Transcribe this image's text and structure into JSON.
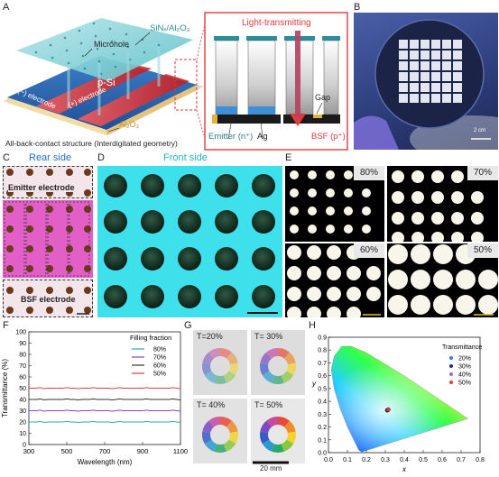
{
  "panels": {
    "A": "A",
    "B": "B",
    "C": "C",
    "D": "D",
    "E": "E",
    "F": "F",
    "G": "G",
    "H": "H"
  },
  "panelA": {
    "sinx": "SiNₓ/Al₂O₃",
    "microhole": "Microhole",
    "psi": "p-Si",
    "neg_electrode": "(−) electrode",
    "pos_electrode": "(+) electrode",
    "al2o3": "Al₂O₃",
    "caption": "All-back-contact structure (Interdigitated geometry)",
    "light": "Light-transmitting",
    "gap": "Gap",
    "emitter": "Emitter (n⁺)",
    "ag": "Ag",
    "bsf": "BSF (p⁺)"
  },
  "panelB": {
    "scale": "2 cm"
  },
  "panelC": {
    "title": "Rear side",
    "emitter": "Emitter electrode",
    "bsf": "BSF electrode"
  },
  "panelD": {
    "title": "Front side"
  },
  "panelE": {
    "labels": [
      "80%",
      "70%",
      "60%",
      "50%"
    ]
  },
  "panelG": {
    "labels": [
      "T=20%",
      "T= 30%",
      "T= 40%",
      "T= 50%"
    ],
    "scale": "20 mm"
  },
  "chart_data": [
    {
      "type": "line",
      "panel": "F",
      "xlabel": "Wavelength (nm)",
      "ylabel": "Transmittance (%)",
      "xlim": [
        300,
        1100
      ],
      "ylim": [
        0,
        100
      ],
      "xticks": [
        "300",
        "500",
        "700",
        "900",
        "1100"
      ],
      "yticks": [
        "0",
        "10",
        "20",
        "30",
        "40",
        "50",
        "60",
        "70",
        "80",
        "90",
        "100"
      ],
      "legend_title": "Filling fraction",
      "series": [
        {
          "name": "80%",
          "color": "#2aa8b8",
          "x": [
            300,
            1100
          ],
          "values": [
            20,
            20
          ]
        },
        {
          "name": "70%",
          "color": "#8a3fd0",
          "x": [
            300,
            1100
          ],
          "values": [
            30,
            30
          ]
        },
        {
          "name": "60%",
          "color": "#333333",
          "x": [
            300,
            1100
          ],
          "values": [
            40,
            40
          ]
        },
        {
          "name": "50%",
          "color": "#e0403a",
          "x": [
            300,
            1100
          ],
          "values": [
            50,
            50
          ]
        }
      ]
    },
    {
      "type": "scatter",
      "panel": "H",
      "xlabel": "x",
      "ylabel": "y",
      "xlim": [
        0.0,
        0.8
      ],
      "ylim": [
        0.0,
        0.9
      ],
      "xticks": [
        "0.0",
        "0.1",
        "0.2",
        "0.3",
        "0.4",
        "0.5",
        "0.6",
        "0.7",
        "0.8"
      ],
      "yticks": [
        "0.0",
        "0.1",
        "0.2",
        "0.3",
        "0.4",
        "0.5",
        "0.6",
        "0.7",
        "0.8",
        "0.9"
      ],
      "legend_title": "Transmittance",
      "series": [
        {
          "name": "20%",
          "color": "#3a7ad8",
          "x": [
            0.31
          ],
          "values": [
            0.33
          ]
        },
        {
          "name": "30%",
          "color": "#203080",
          "x": [
            0.312
          ],
          "values": [
            0.332
          ]
        },
        {
          "name": "40%",
          "color": "#9a6ad8",
          "x": [
            0.314
          ],
          "values": [
            0.334
          ]
        },
        {
          "name": "50%",
          "color": "#e0403a",
          "x": [
            0.316
          ],
          "values": [
            0.336
          ]
        }
      ]
    }
  ]
}
